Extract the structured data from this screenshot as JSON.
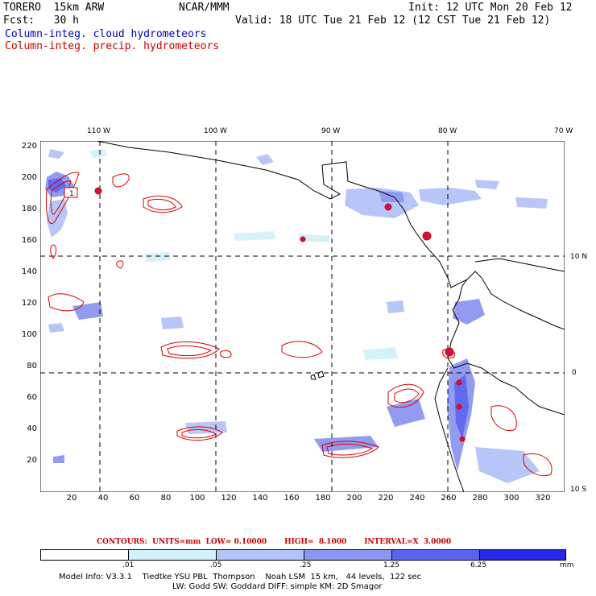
{
  "header": {
    "model": "TORERO  15km ARW",
    "org": "NCAR/MMM",
    "init": "Init: 12 UTC Mon 20 Feb 12",
    "fcst": "Fcst:   30 h",
    "valid": "Valid: 18 UTC Tue 21 Feb 12 (12 CST Tue 21 Feb 12)",
    "field_cloud": "Column-integ. cloud hydrometeors",
    "field_precip": "Column-integ. precip. hydrometeors"
  },
  "map": {
    "lon_labels": [
      "110 W",
      "100 W",
      "90 W",
      "80 W",
      "70 W"
    ],
    "lat_labels": [
      "10 N",
      "0",
      "10 S"
    ],
    "y_ticks": [
      "220",
      "200",
      "180",
      "160",
      "140",
      "120",
      "100",
      "80",
      "60",
      "40",
      "20"
    ],
    "x_ticks": [
      "20",
      "40",
      "60",
      "80",
      "100",
      "120",
      "140",
      "160",
      "180",
      "200",
      "220",
      "240",
      "260",
      "280",
      "300",
      "320"
    ],
    "contour_label": "1"
  },
  "legend": {
    "contours_text": "CONTOURS:  UNITS=mm  LOW= 0.10000       HIGH=  8.1000       INTERVAL=X  3.0000",
    "bins": [
      ".01",
      ".05",
      ".25",
      "1.25",
      "6.25"
    ],
    "unit": "mm",
    "colors": [
      "#ffffff",
      "#d2f2fa",
      "#b4c4f8",
      "#8c96f0",
      "#5a64f0",
      "#2828e6"
    ]
  },
  "footer": {
    "line1": "Model Info: V3.3.1    Tiedtke YSU PBL  Thompson    Noah LSM  15 km,   44 levels,  122 sec",
    "line2": "LW: Godd SW: Goddard DIFF: simple KM: 2D Smagor"
  }
}
